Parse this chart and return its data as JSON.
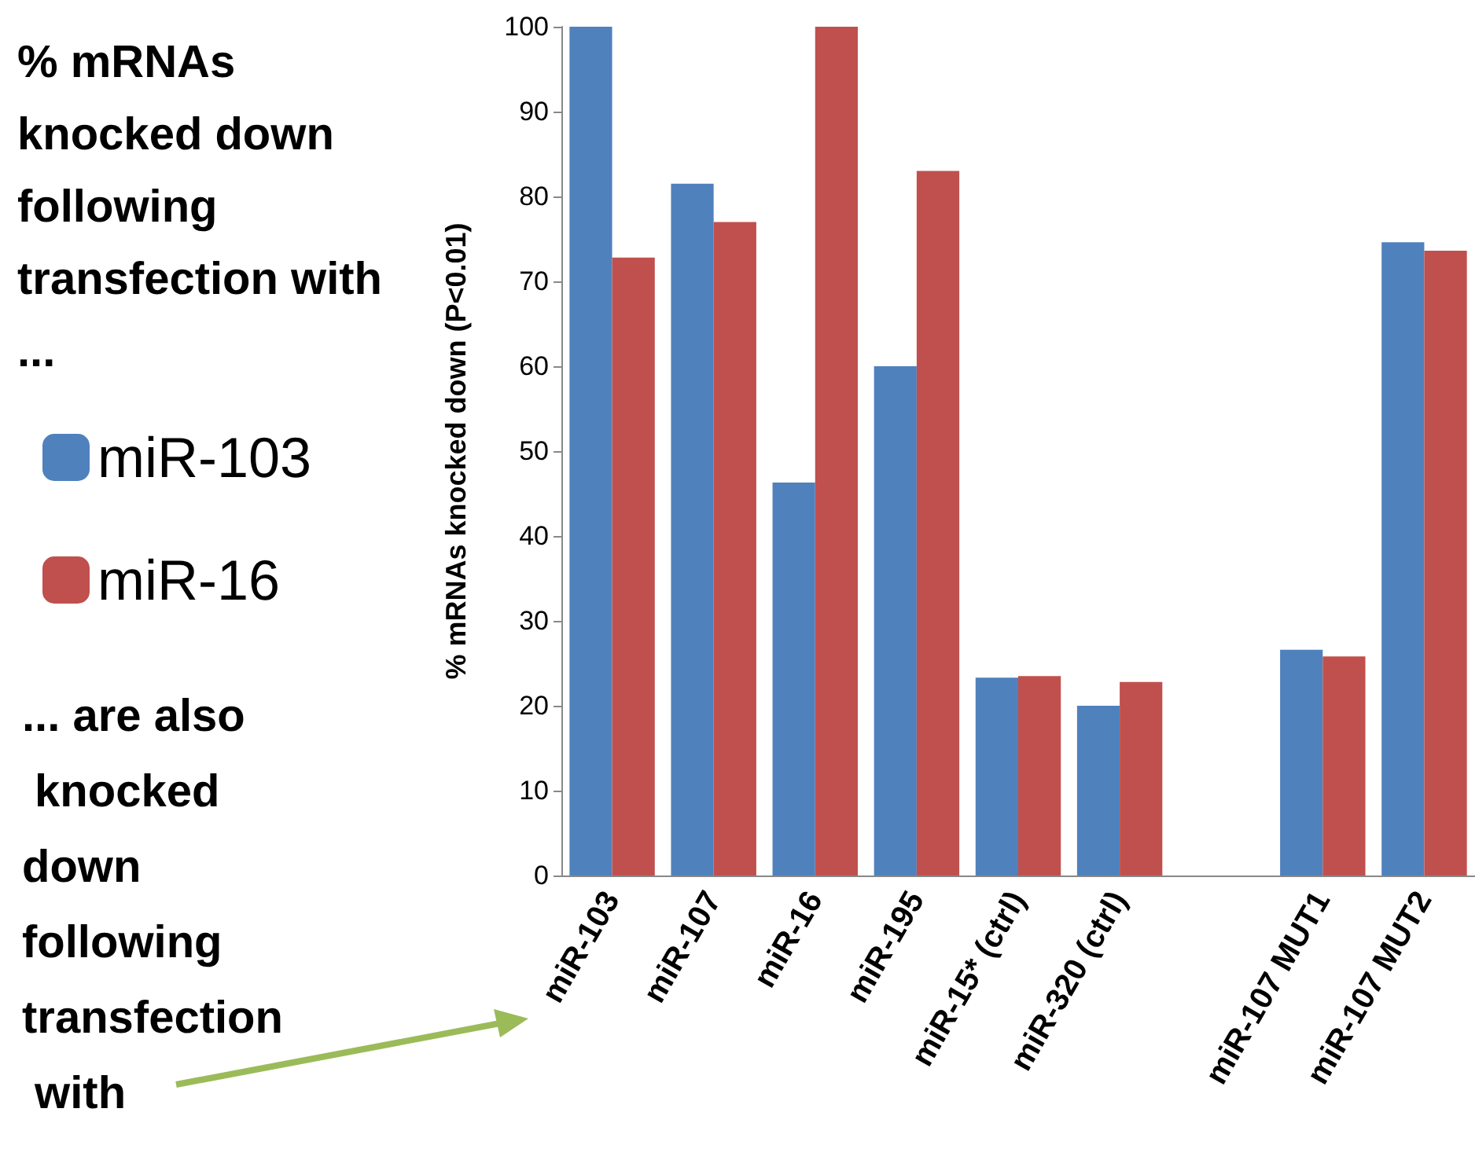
{
  "chart_data": {
    "type": "bar",
    "title": "% mRNAs knocked down following transfection with ...",
    "ylabel": "% mRNAs knocked down (P<0.01)",
    "annotations": [
      "... are also knocked down following transfection with"
    ],
    "categories": [
      "miR-103",
      "miR-107",
      "miR-16",
      "miR-195",
      "miR-15* (ctrl)",
      "miR-320 (ctrl)",
      null,
      "miR-107 MUT1",
      "miR-107 MUT2"
    ],
    "series": [
      {
        "name": "miR-103",
        "color": "#4f81bd",
        "values": [
          100,
          81.5,
          46.3,
          60,
          23.3,
          20,
          null,
          26.6,
          74.6
        ]
      },
      {
        "name": "miR-16",
        "color": "#c0504d",
        "values": [
          72.8,
          77,
          100,
          83,
          23.5,
          22.8,
          null,
          25.8,
          73.6
        ]
      }
    ],
    "ylim": [
      0,
      100
    ],
    "yticks": [
      0,
      10,
      20,
      30,
      40,
      50,
      60,
      70,
      80,
      90,
      100
    ],
    "grid": false,
    "legend": "left"
  }
}
